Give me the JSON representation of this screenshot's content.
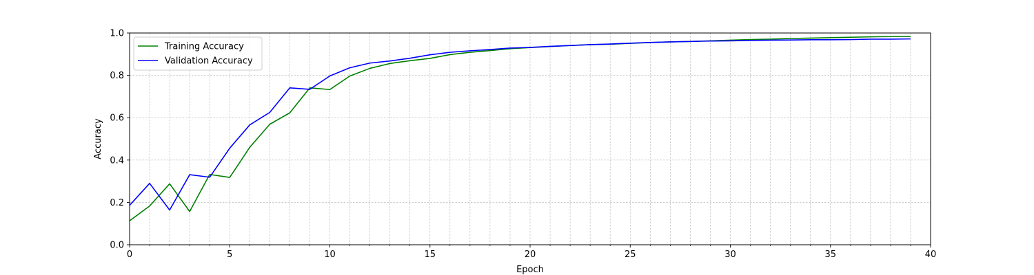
{
  "chart_data": {
    "type": "line",
    "xlabel": "Epoch",
    "ylabel": "Accuracy",
    "xlim": [
      0,
      40
    ],
    "ylim": [
      0,
      1.0
    ],
    "x_major_ticks": [
      0,
      5,
      10,
      15,
      20,
      25,
      30,
      35,
      40
    ],
    "x_minor_step": 1,
    "y_ticks": [
      0.0,
      0.2,
      0.4,
      0.6,
      0.8,
      1.0
    ],
    "y_tick_labels": [
      "0.0",
      "0.2",
      "0.4",
      "0.6",
      "0.8",
      "1.0"
    ],
    "grid": true,
    "legend_position": "top-left",
    "x": [
      0,
      1,
      2,
      3,
      4,
      5,
      6,
      7,
      8,
      9,
      10,
      11,
      12,
      13,
      14,
      15,
      16,
      17,
      18,
      19,
      20,
      21,
      22,
      23,
      24,
      25,
      26,
      27,
      28,
      29,
      30,
      31,
      32,
      33,
      34,
      35,
      36,
      37,
      38,
      39
    ],
    "series": [
      {
        "name": "Training Accuracy",
        "color": "#008000",
        "values": [
          0.113,
          0.183,
          0.288,
          0.157,
          0.332,
          0.318,
          0.46,
          0.569,
          0.623,
          0.741,
          0.733,
          0.797,
          0.833,
          0.856,
          0.869,
          0.88,
          0.898,
          0.909,
          0.917,
          0.926,
          0.931,
          0.936,
          0.941,
          0.945,
          0.947,
          0.951,
          0.955,
          0.958,
          0.96,
          0.963,
          0.966,
          0.969,
          0.971,
          0.974,
          0.976,
          0.978,
          0.98,
          0.982,
          0.983,
          0.984
        ]
      },
      {
        "name": "Validation Accuracy",
        "color": "#0000ff",
        "values": [
          0.186,
          0.29,
          0.164,
          0.331,
          0.319,
          0.456,
          0.566,
          0.625,
          0.741,
          0.734,
          0.797,
          0.836,
          0.858,
          0.868,
          0.881,
          0.897,
          0.909,
          0.916,
          0.922,
          0.929,
          0.932,
          0.937,
          0.941,
          0.945,
          0.948,
          0.952,
          0.955,
          0.958,
          0.96,
          0.962,
          0.963,
          0.965,
          0.966,
          0.967,
          0.968,
          0.968,
          0.969,
          0.971,
          0.971,
          0.972
        ]
      }
    ]
  }
}
